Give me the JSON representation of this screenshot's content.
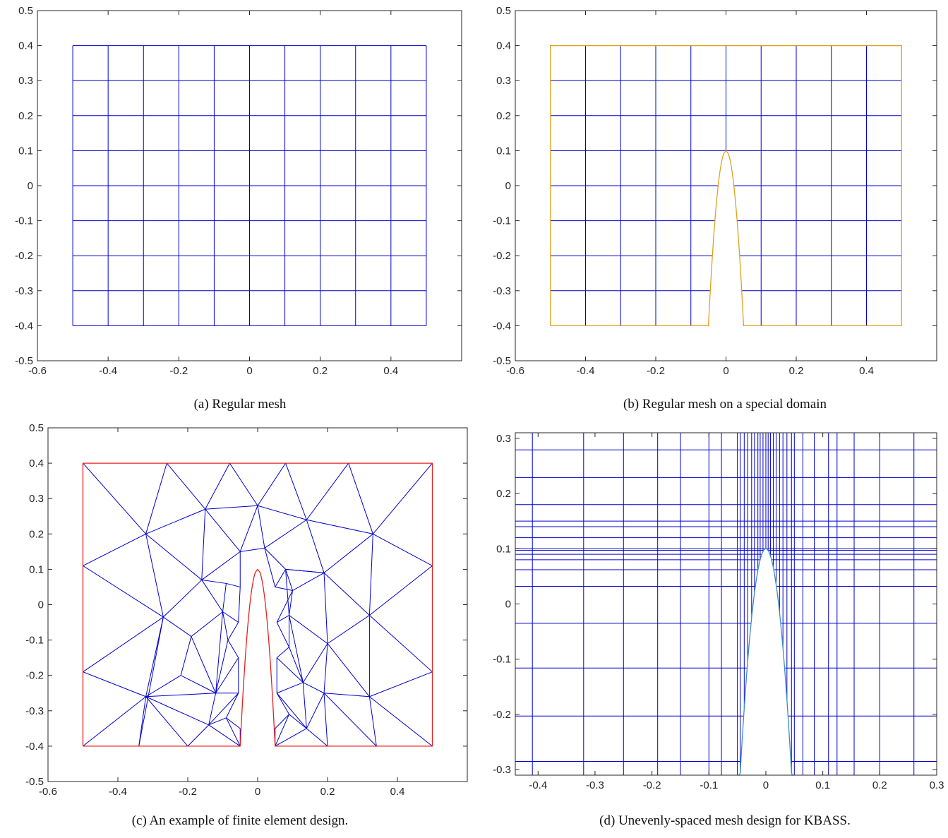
{
  "colors": {
    "mesh": "#0000cc",
    "boundary_b": "#e0a020",
    "boundary_c": "#e52020",
    "curve_d": "#3a8fc0",
    "axis": "#262626"
  },
  "chart_data": [
    {
      "id": "a",
      "type": "mesh",
      "caption": "(a) Regular mesh",
      "xlim": [
        -0.6,
        0.6
      ],
      "ylim": [
        -0.5,
        0.5
      ],
      "xticks": [
        -0.6,
        -0.4,
        -0.2,
        0,
        0.2,
        0.4
      ],
      "xtick_labels": [
        "-0.6",
        "-0.4",
        "-0.2",
        "0",
        "0.2",
        "0.4"
      ],
      "yticks": [
        -0.5,
        -0.4,
        -0.3,
        -0.2,
        -0.1,
        0,
        0.1,
        0.2,
        0.3,
        0.4,
        0.5
      ],
      "ytick_labels": [
        "-0.5",
        "-0.4",
        "-0.3",
        "-0.2",
        "-0.1",
        "0",
        "0.1",
        "0.2",
        "0.3",
        "0.4",
        "0.5"
      ],
      "vertical_lines": [
        -0.5,
        -0.4,
        -0.3,
        -0.2,
        -0.1,
        0,
        0.1,
        0.2,
        0.3,
        0.4,
        0.5
      ],
      "horizontal_lines": [
        -0.4,
        -0.3,
        -0.2,
        -0.1,
        0,
        0.1,
        0.2,
        0.3,
        0.4
      ],
      "mesh_extent": {
        "x": [
          -0.5,
          0.5
        ],
        "y": [
          -0.4,
          0.4
        ]
      }
    },
    {
      "id": "b",
      "type": "mesh",
      "caption": "(b) Regular mesh on a special domain",
      "xlim": [
        -0.6,
        0.6
      ],
      "ylim": [
        -0.5,
        0.5
      ],
      "xticks": [
        -0.6,
        -0.4,
        -0.2,
        0,
        0.2,
        0.4
      ],
      "xtick_labels": [
        "-0.6",
        "-0.4",
        "-0.2",
        "0",
        "0.2",
        "0.4"
      ],
      "yticks": [
        -0.5,
        -0.4,
        -0.3,
        -0.2,
        -0.1,
        0,
        0.1,
        0.2,
        0.3,
        0.4,
        0.5
      ],
      "ytick_labels": [
        "-0.5",
        "-0.4",
        "-0.3",
        "-0.2",
        "-0.1",
        "0",
        "0.1",
        "0.2",
        "0.3",
        "0.4",
        "0.5"
      ],
      "vertical_lines": [
        -0.4,
        -0.3,
        -0.2,
        -0.1,
        0,
        0.1,
        0.2,
        0.3,
        0.4
      ],
      "horizontal_lines": [
        -0.3,
        -0.2,
        -0.1,
        0,
        0.1,
        0.2,
        0.3
      ],
      "domain": {
        "x": [
          -0.5,
          0.5
        ],
        "y": [
          -0.4,
          0.4
        ],
        "notch_half_width": 0.05,
        "notch_top": 0.1
      }
    },
    {
      "id": "c",
      "type": "triangulation",
      "caption": "(c) An example of finite element design.",
      "xlim": [
        -0.6,
        0.6
      ],
      "ylim": [
        -0.5,
        0.5
      ],
      "xticks": [
        -0.6,
        -0.4,
        -0.2,
        0,
        0.2,
        0.4
      ],
      "xtick_labels": [
        "-0.6",
        "-0.4",
        "-0.2",
        "0",
        "0.2",
        "0.4"
      ],
      "yticks": [
        -0.5,
        -0.4,
        -0.3,
        -0.2,
        -0.1,
        0,
        0.1,
        0.2,
        0.3,
        0.4,
        0.5
      ],
      "ytick_labels": [
        "-0.5",
        "-0.4",
        "-0.3",
        "-0.2",
        "-0.1",
        "0",
        "0.1",
        "0.2",
        "0.3",
        "0.4",
        "0.5"
      ],
      "domain": {
        "x": [
          -0.5,
          0.5
        ],
        "y": [
          -0.4,
          0.4
        ],
        "notch_half_width": 0.05,
        "notch_top": 0.1
      },
      "nodes": [
        [
          -0.5,
          0.4
        ],
        [
          -0.26,
          0.4
        ],
        [
          -0.08,
          0.4
        ],
        [
          0.08,
          0.4
        ],
        [
          0.26,
          0.4
        ],
        [
          0.5,
          0.4
        ],
        [
          -0.5,
          0.11
        ],
        [
          -0.5,
          -0.19
        ],
        [
          -0.5,
          -0.4
        ],
        [
          0.5,
          0.11
        ],
        [
          0.5,
          -0.19
        ],
        [
          0.5,
          -0.4
        ],
        [
          -0.34,
          -0.4
        ],
        [
          -0.2,
          -0.4
        ],
        [
          -0.05,
          -0.4
        ],
        [
          0.05,
          -0.4
        ],
        [
          0.2,
          -0.4
        ],
        [
          0.34,
          -0.4
        ],
        [
          -0.32,
          0.2
        ],
        [
          -0.15,
          0.27
        ],
        [
          0.0,
          0.28
        ],
        [
          0.14,
          0.24
        ],
        [
          0.33,
          0.2
        ],
        [
          -0.05,
          0.15
        ],
        [
          0.02,
          0.16
        ],
        [
          -0.16,
          0.07
        ],
        [
          0.08,
          0.1
        ],
        [
          0.19,
          0.09
        ],
        [
          -0.27,
          -0.035
        ],
        [
          0.32,
          -0.03
        ],
        [
          -0.32,
          -0.26
        ],
        [
          0.32,
          -0.26
        ],
        [
          -0.19,
          -0.09
        ],
        [
          0.2,
          -0.11
        ],
        [
          -0.22,
          -0.2
        ],
        [
          0.19,
          -0.25
        ],
        [
          -0.1,
          -0.02
        ],
        [
          0.09,
          -0.03
        ],
        [
          -0.12,
          -0.25
        ],
        [
          0.13,
          -0.22
        ],
        [
          -0.14,
          -0.34
        ],
        [
          0.14,
          -0.35
        ],
        [
          -0.05,
          0.05
        ],
        [
          -0.055,
          -0.05
        ],
        [
          -0.055,
          -0.15
        ],
        [
          -0.055,
          -0.25
        ],
        [
          -0.05,
          -0.35
        ],
        [
          0.05,
          0.05
        ],
        [
          0.055,
          -0.05
        ],
        [
          0.055,
          -0.15
        ],
        [
          0.055,
          -0.25
        ],
        [
          0.05,
          -0.35
        ],
        [
          -0.09,
          0.06
        ],
        [
          0.1,
          0.04
        ],
        [
          -0.085,
          -0.1
        ],
        [
          0.09,
          -0.12
        ],
        [
          -0.09,
          -0.32
        ],
        [
          0.09,
          -0.31
        ]
      ],
      "edges": [
        [
          0,
          18
        ],
        [
          1,
          18
        ],
        [
          1,
          19
        ],
        [
          2,
          19
        ],
        [
          2,
          20
        ],
        [
          3,
          20
        ],
        [
          3,
          21
        ],
        [
          4,
          21
        ],
        [
          4,
          22
        ],
        [
          5,
          22
        ],
        [
          6,
          18
        ],
        [
          9,
          22
        ],
        [
          6,
          28
        ],
        [
          9,
          29
        ],
        [
          7,
          28
        ],
        [
          10,
          29
        ],
        [
          7,
          30
        ],
        [
          10,
          31
        ],
        [
          8,
          30
        ],
        [
          11,
          31
        ],
        [
          12,
          30
        ],
        [
          17,
          31
        ],
        [
          12,
          28
        ],
        [
          18,
          28
        ],
        [
          18,
          19
        ],
        [
          19,
          20
        ],
        [
          20,
          21
        ],
        [
          21,
          22
        ],
        [
          22,
          29
        ],
        [
          18,
          25
        ],
        [
          19,
          23
        ],
        [
          20,
          23
        ],
        [
          20,
          24
        ],
        [
          21,
          24
        ],
        [
          21,
          27
        ],
        [
          22,
          27
        ],
        [
          19,
          25
        ],
        [
          23,
          24
        ],
        [
          23,
          25
        ],
        [
          24,
          26
        ],
        [
          26,
          27
        ],
        [
          27,
          29
        ],
        [
          27,
          33
        ],
        [
          29,
          33
        ],
        [
          29,
          31
        ],
        [
          33,
          31
        ],
        [
          25,
          28
        ],
        [
          25,
          36
        ],
        [
          28,
          32
        ],
        [
          28,
          30
        ],
        [
          30,
          34
        ],
        [
          32,
          34
        ],
        [
          32,
          36
        ],
        [
          34,
          38
        ],
        [
          30,
          38
        ],
        [
          30,
          40
        ],
        [
          13,
          30
        ],
        [
          13,
          40
        ],
        [
          14,
          40
        ],
        [
          38,
          40
        ],
        [
          36,
          38
        ],
        [
          32,
          38
        ],
        [
          33,
          35
        ],
        [
          35,
          31
        ],
        [
          35,
          17
        ],
        [
          16,
          35
        ],
        [
          16,
          41
        ],
        [
          15,
          41
        ],
        [
          35,
          41
        ],
        [
          37,
          39
        ],
        [
          33,
          37
        ],
        [
          37,
          26
        ],
        [
          39,
          35
        ],
        [
          39,
          41
        ],
        [
          23,
          42
        ],
        [
          25,
          52
        ],
        [
          52,
          42
        ],
        [
          36,
          52
        ],
        [
          36,
          43
        ],
        [
          42,
          43
        ],
        [
          43,
          54
        ],
        [
          54,
          44
        ],
        [
          36,
          54
        ],
        [
          38,
          54
        ],
        [
          38,
          44
        ],
        [
          44,
          45
        ],
        [
          45,
          38
        ],
        [
          45,
          56
        ],
        [
          56,
          46
        ],
        [
          46,
          14
        ],
        [
          56,
          40
        ],
        [
          56,
          14
        ],
        [
          45,
          40
        ],
        [
          24,
          47
        ],
        [
          26,
          47
        ],
        [
          26,
          53
        ],
        [
          53,
          47
        ],
        [
          53,
          48
        ],
        [
          37,
          53
        ],
        [
          37,
          48
        ],
        [
          48,
          55
        ],
        [
          55,
          49
        ],
        [
          37,
          55
        ],
        [
          39,
          55
        ],
        [
          39,
          49
        ],
        [
          49,
          50
        ],
        [
          50,
          39
        ],
        [
          50,
          57
        ],
        [
          57,
          51
        ],
        [
          51,
          15
        ],
        [
          57,
          41
        ],
        [
          57,
          15
        ],
        [
          50,
          41
        ],
        [
          26,
          27
        ],
        [
          53,
          27
        ],
        [
          33,
          39
        ]
      ]
    },
    {
      "id": "d",
      "type": "mesh",
      "caption": "(d) Unevenly-spaced mesh design for KBASS.",
      "xlim": [
        -0.44,
        0.3
      ],
      "ylim": [
        -0.31,
        0.31
      ],
      "xticks": [
        -0.4,
        -0.3,
        -0.2,
        -0.1,
        0,
        0.1,
        0.2,
        0.3
      ],
      "xtick_labels": [
        "-0.4",
        "-0.3",
        "-0.2",
        "-0.1",
        "0",
        "0.1",
        "0.2",
        "0.3"
      ],
      "yticks": [
        -0.3,
        -0.2,
        -0.1,
        0,
        0.1,
        0.2,
        0.3
      ],
      "ytick_labels": [
        "-0.3",
        "-0.2",
        "-0.1",
        "0",
        "0.1",
        "0.2",
        "0.3"
      ],
      "vertical_lines": [
        -0.41,
        -0.32,
        -0.25,
        -0.19,
        -0.15,
        -0.1,
        -0.078,
        -0.05,
        -0.045,
        -0.038,
        -0.032,
        -0.025,
        -0.02,
        -0.014,
        -0.01,
        -0.005,
        0.0,
        0.004,
        0.008,
        0.013,
        0.018,
        0.024,
        0.03,
        0.037,
        0.045,
        0.05,
        0.065,
        0.085,
        0.11,
        0.125,
        0.155,
        0.2,
        0.26
      ],
      "horizontal_lines": [
        -0.285,
        -0.203,
        -0.116,
        -0.035,
        0.032,
        0.062,
        0.08,
        0.09,
        0.097,
        0.1,
        0.12,
        0.14,
        0.15,
        0.18,
        0.229,
        0.279
      ],
      "curve": {
        "half_width": 0.05,
        "top": 0.1
      }
    }
  ]
}
